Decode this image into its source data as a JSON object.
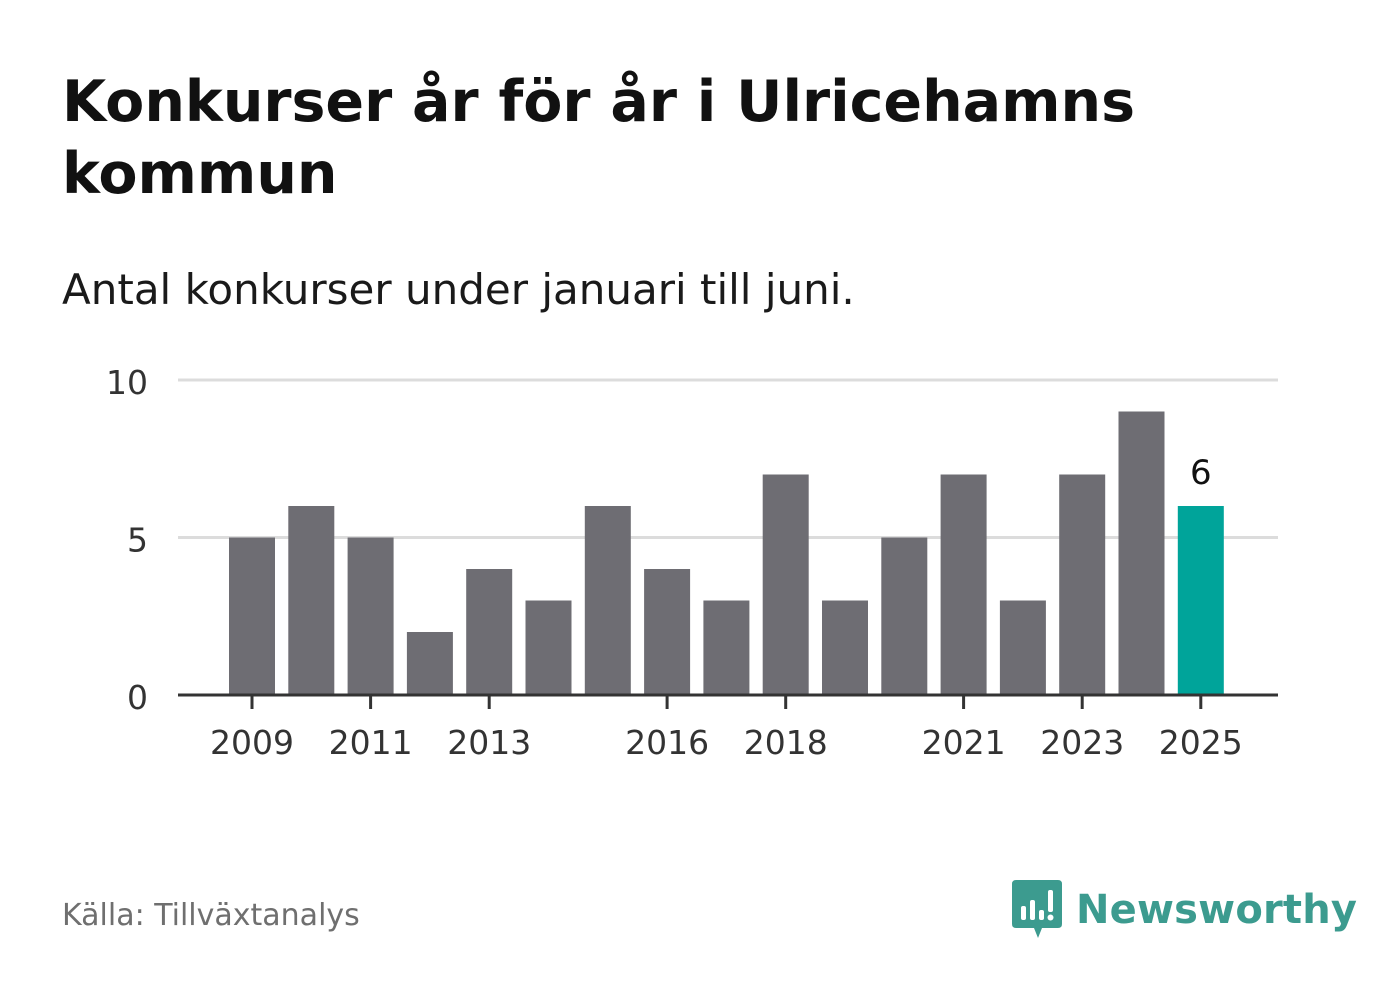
{
  "title": "Konkurser år för år i Ulricehamns kommun",
  "subtitle": "Antal konkurser under januari till juni.",
  "source": "Källa: Tillväxtanalys",
  "brand": {
    "name": "Newsworthy",
    "icon": "newsworthy-logo-icon",
    "color": "#3c9b8f"
  },
  "colors": {
    "bar": "#6e6d73",
    "highlight": "#00a49a",
    "grid": "#dcdcdc",
    "axis": "#333333"
  },
  "chart_data": {
    "type": "bar",
    "categories": [
      "2009",
      "2010",
      "2011",
      "2012",
      "2013",
      "2014",
      "2015",
      "2016",
      "2017",
      "2018",
      "2019",
      "2020",
      "2021",
      "2022",
      "2023",
      "2024",
      "2025"
    ],
    "values": [
      5,
      6,
      5,
      2,
      4,
      3,
      6,
      4,
      3,
      7,
      3,
      5,
      7,
      3,
      7,
      9,
      6
    ],
    "x_tick_labels": [
      "2009",
      "2011",
      "2013",
      "2016",
      "2018",
      "2021",
      "2023",
      "2025"
    ],
    "y_ticks": [
      0,
      5,
      10
    ],
    "ylim": [
      0,
      10
    ],
    "grid": true,
    "highlight": {
      "category": "2025",
      "value_label": "6"
    }
  }
}
